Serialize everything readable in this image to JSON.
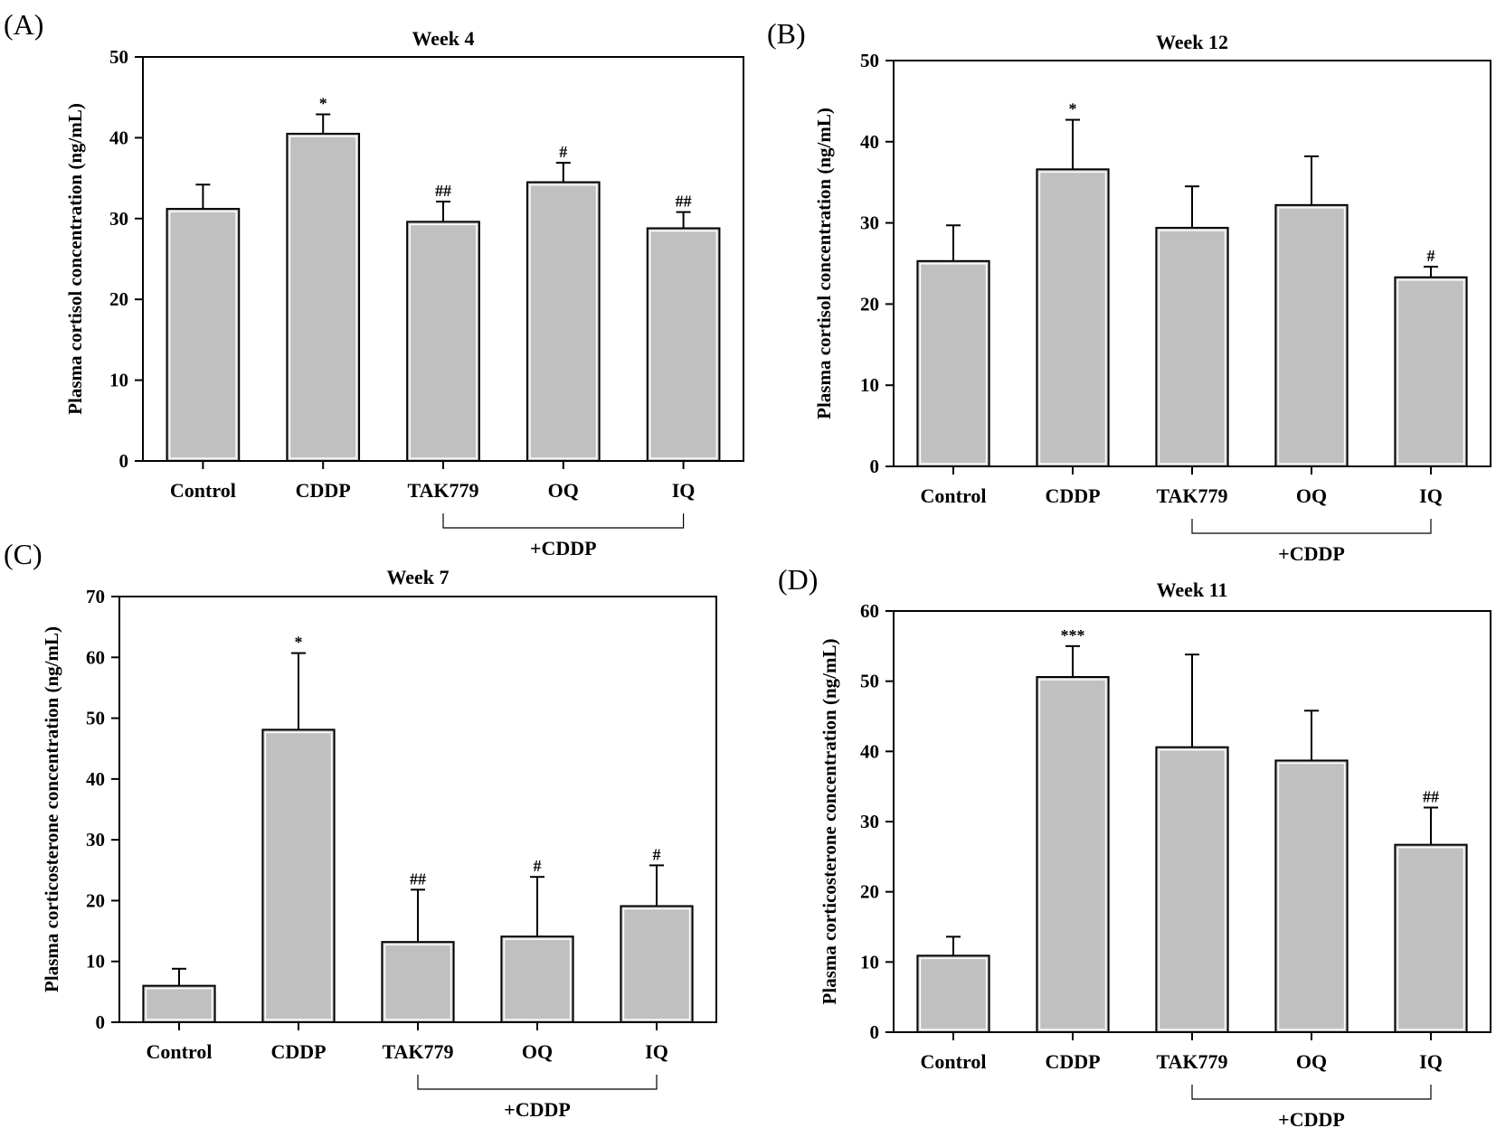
{
  "chart_data": [
    {
      "panel": "(A)",
      "type": "bar",
      "title": "Week 4",
      "ylabel": "Plasma cortisol concentration (ng/mL)",
      "xlabel": "",
      "ylim": [
        0,
        50
      ],
      "yticks": [
        0,
        10,
        20,
        30,
        40,
        50
      ],
      "categories": [
        "Control",
        "CDDP",
        "TAK779",
        "OQ",
        "IQ"
      ],
      "values": [
        31.2,
        40.5,
        29.6,
        34.5,
        28.8
      ],
      "errors": [
        3.0,
        2.4,
        2.5,
        2.4,
        2.0
      ],
      "significance": [
        "",
        "*",
        "##",
        "#",
        "##"
      ],
      "group_bracket": {
        "label": "+CDDP",
        "from": "TAK779",
        "to": "IQ"
      }
    },
    {
      "panel": "(B)",
      "type": "bar",
      "title": "Week 12",
      "ylabel": "Plasma cortisol concentration (ng/mL)",
      "xlabel": "",
      "ylim": [
        0,
        50
      ],
      "yticks": [
        0,
        10,
        20,
        30,
        40,
        50
      ],
      "categories": [
        "Control",
        "CDDP",
        "TAK779",
        "OQ",
        "IQ"
      ],
      "values": [
        25.3,
        36.6,
        29.4,
        32.2,
        23.3
      ],
      "errors": [
        4.4,
        6.1,
        5.1,
        6.0,
        1.3
      ],
      "significance": [
        "",
        "*",
        "",
        "",
        "#"
      ],
      "group_bracket": {
        "label": "+CDDP",
        "from": "TAK779",
        "to": "IQ"
      }
    },
    {
      "panel": "(C)",
      "type": "bar",
      "title": "Week 7",
      "ylabel": "Plasma corticosterone concentration (ng/mL)",
      "xlabel": "",
      "ylim": [
        0,
        70
      ],
      "yticks": [
        0,
        10,
        20,
        30,
        40,
        50,
        60,
        70
      ],
      "categories": [
        "Control",
        "CDDP",
        "TAK779",
        "OQ",
        "IQ"
      ],
      "values": [
        6.0,
        48.1,
        13.2,
        14.1,
        19.1
      ],
      "errors": [
        2.8,
        12.6,
        8.6,
        9.8,
        6.7
      ],
      "significance": [
        "",
        "*",
        "##",
        "#",
        "#"
      ],
      "group_bracket": {
        "label": "+CDDP",
        "from": "TAK779",
        "to": "IQ"
      }
    },
    {
      "panel": "(D)",
      "type": "bar",
      "title": "Week 11",
      "ylabel": "Plasma corticosterone concentration (ng/mL)",
      "xlabel": "",
      "ylim": [
        0,
        60
      ],
      "yticks": [
        0,
        10,
        20,
        30,
        40,
        50,
        60
      ],
      "categories": [
        "Control",
        "CDDP",
        "TAK779",
        "OQ",
        "IQ"
      ],
      "values": [
        10.9,
        50.6,
        40.6,
        38.7,
        26.7
      ],
      "errors": [
        2.7,
        4.4,
        13.2,
        7.1,
        5.3
      ],
      "significance": [
        "",
        "***",
        "",
        "",
        "##"
      ],
      "group_bracket": {
        "label": "+CDDP",
        "from": "TAK779",
        "to": "IQ"
      }
    }
  ]
}
